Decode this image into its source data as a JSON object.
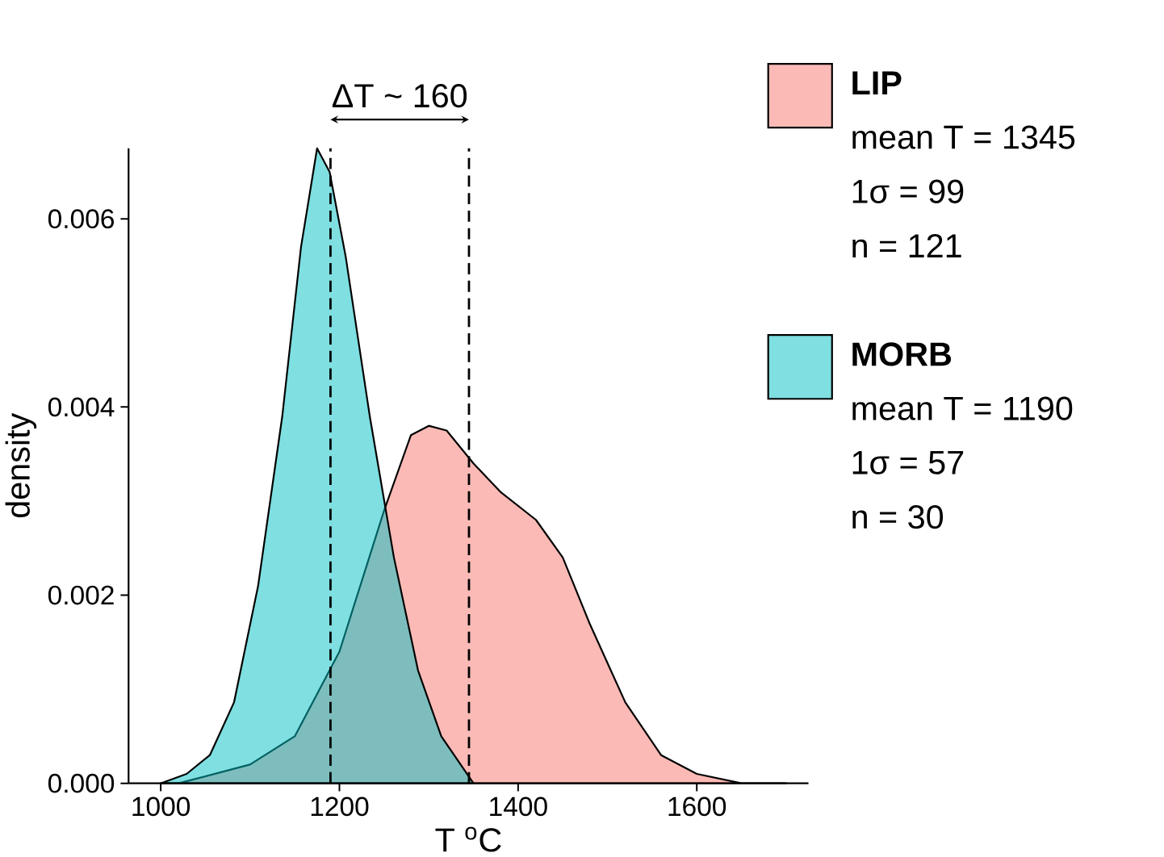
{
  "chart_data": {
    "type": "area",
    "xlabel": "T $^{o}$C",
    "ylabel": "density",
    "series": [
      {
        "name": "LIP",
        "color": "#f8766d",
        "x": [
          1000,
          1020,
          1100,
          1150,
          1200,
          1250,
          1280,
          1300,
          1320,
          1350,
          1380,
          1420,
          1450,
          1480,
          1520,
          1560,
          1600,
          1650,
          1700
        ],
        "values": [
          0,
          0,
          0.0002,
          0.0005,
          0.0014,
          0.0029,
          0.0037,
          0.0038,
          0.00375,
          0.0034,
          0.0031,
          0.0028,
          0.0024,
          0.0017,
          0.00086,
          0.0003,
          0.0001,
          0,
          0
        ]
      },
      {
        "name": "MORB",
        "color": "#00bfc4",
        "x": [
          1000,
          1029,
          1055,
          1082,
          1109,
          1136,
          1157,
          1175,
          1189,
          1207,
          1234,
          1261,
          1288,
          1314,
          1350
        ],
        "values": [
          0,
          0.0001,
          0.0003,
          0.00086,
          0.0021,
          0.0039,
          0.0057,
          0.00675,
          0.0065,
          0.0056,
          0.0039,
          0.0024,
          0.0012,
          0.0005,
          0
        ]
      }
    ],
    "xlim": [
      964,
      1725
    ],
    "ylim": [
      0,
      0.00675
    ],
    "xticks": [
      1000,
      1200,
      1400,
      1600
    ],
    "yticks": [
      {
        "value": 0,
        "label": "0.000"
      },
      {
        "value": 0.002,
        "label": "0.002"
      },
      {
        "value": 0.004,
        "label": "0.004"
      },
      {
        "value": 0.006,
        "label": "0.006"
      }
    ],
    "ref_lines": [
      {
        "axis": "x",
        "value": 1190,
        "line_style": "dashed"
      },
      {
        "axis": "x",
        "value": 1345,
        "line_style": "dashed"
      }
    ],
    "annotations": [
      "ΔT ~ 160",
      "mean T = 1345",
      "1σ = 99",
      "n = 121",
      "mean T = 1190",
      "1σ = 57",
      "n = 30"
    ],
    "legend": "right",
    "grid": false
  }
}
